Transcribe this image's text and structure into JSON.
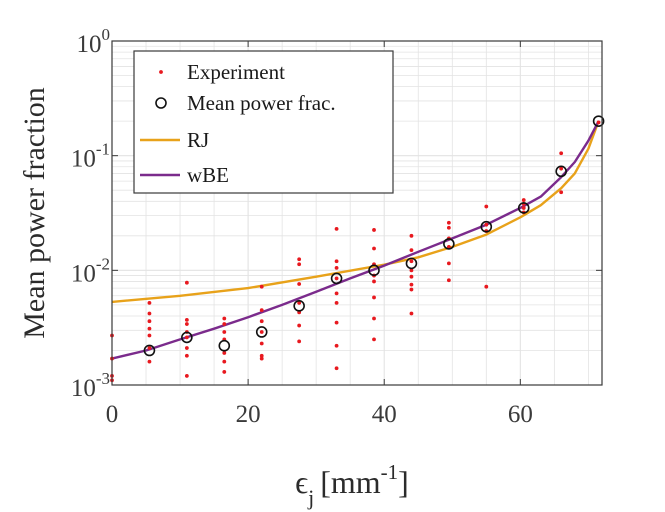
{
  "chart_data": {
    "type": "scatter",
    "title": "",
    "xlabel": {
      "base": "ϵ",
      "sub": "j",
      "unit": "[mm",
      "sup": "-1",
      "close": "]"
    },
    "ylabel": "Mean power fraction",
    "xscale": "linear",
    "yscale": "log",
    "xlim": [
      0,
      72
    ],
    "ylim": [
      0.001,
      1
    ],
    "xticks": [
      0,
      20,
      40,
      60
    ],
    "xtick_labels": [
      "0",
      "20",
      "40",
      "60"
    ],
    "yticks": [
      0.001,
      0.01,
      0.1,
      1
    ],
    "ytick_labels": [
      {
        "base": "10",
        "exp": "-3"
      },
      {
        "base": "10",
        "exp": "-2"
      },
      {
        "base": "10",
        "exp": "-1"
      },
      {
        "base": "10",
        "exp": "0"
      }
    ],
    "grid": true,
    "legend_position": "top-left",
    "colors": {
      "experiment": "#e8191f",
      "mean": "#111111",
      "rj": "#e8a21a",
      "wbe": "#7b2b8c",
      "axis": "#3a3a3a",
      "grid": "#e3e3e3"
    },
    "series": [
      {
        "name": "Experiment",
        "kind": "dots",
        "points": [
          [
            0,
            0.0017
          ],
          [
            0,
            0.0027
          ],
          [
            0,
            0.0011
          ],
          [
            0,
            0.0012
          ],
          [
            5.5,
            0.0052
          ],
          [
            5.5,
            0.0042
          ],
          [
            5.5,
            0.0036
          ],
          [
            5.5,
            0.0031
          ],
          [
            5.5,
            0.0027
          ],
          [
            5.5,
            0.0021
          ],
          [
            5.5,
            0.0016
          ],
          [
            11,
            0.0078
          ],
          [
            11,
            0.0037
          ],
          [
            11,
            0.0034
          ],
          [
            11,
            0.0029
          ],
          [
            11,
            0.0026
          ],
          [
            11,
            0.0021
          ],
          [
            11,
            0.0018
          ],
          [
            11,
            0.0012
          ],
          [
            16.5,
            0.0038
          ],
          [
            16.5,
            0.0034
          ],
          [
            16.5,
            0.0029
          ],
          [
            16.5,
            0.0025
          ],
          [
            16.5,
            0.0019
          ],
          [
            16.5,
            0.0016
          ],
          [
            16.5,
            0.0013
          ],
          [
            22,
            0.0072
          ],
          [
            22,
            0.0045
          ],
          [
            22,
            0.0036
          ],
          [
            22,
            0.0029
          ],
          [
            22,
            0.0023
          ],
          [
            22,
            0.0018
          ],
          [
            22,
            0.0017
          ],
          [
            27.5,
            0.0125
          ],
          [
            27.5,
            0.0113
          ],
          [
            27.5,
            0.0076
          ],
          [
            27.5,
            0.0052
          ],
          [
            27.5,
            0.0043
          ],
          [
            27.5,
            0.0033
          ],
          [
            27.5,
            0.0024
          ],
          [
            33,
            0.023
          ],
          [
            33,
            0.012
          ],
          [
            33,
            0.0105
          ],
          [
            33,
            0.0085
          ],
          [
            33,
            0.0063
          ],
          [
            33,
            0.0052
          ],
          [
            33,
            0.0035
          ],
          [
            33,
            0.0022
          ],
          [
            33,
            0.0014
          ],
          [
            38.5,
            0.0225
          ],
          [
            38.5,
            0.0155
          ],
          [
            38.5,
            0.0113
          ],
          [
            38.5,
            0.009
          ],
          [
            38.5,
            0.008
          ],
          [
            38.5,
            0.0058
          ],
          [
            38.5,
            0.0038
          ],
          [
            38.5,
            0.0025
          ],
          [
            44,
            0.02
          ],
          [
            44,
            0.015
          ],
          [
            44,
            0.012
          ],
          [
            44,
            0.01
          ],
          [
            44,
            0.0088
          ],
          [
            44,
            0.0075
          ],
          [
            44,
            0.0068
          ],
          [
            44,
            0.0042
          ],
          [
            49.5,
            0.026
          ],
          [
            49.5,
            0.0235
          ],
          [
            49.5,
            0.019
          ],
          [
            49.5,
            0.016
          ],
          [
            49.5,
            0.0115
          ],
          [
            49.5,
            0.0082
          ],
          [
            55,
            0.036
          ],
          [
            55,
            0.025
          ],
          [
            55,
            0.022
          ],
          [
            55,
            0.0072
          ],
          [
            60.5,
            0.041
          ],
          [
            60.5,
            0.038
          ],
          [
            60.5,
            0.035
          ],
          [
            60.5,
            0.032
          ],
          [
            66,
            0.105
          ],
          [
            66,
            0.077
          ],
          [
            66,
            0.048
          ],
          [
            71.5,
            0.195
          ]
        ]
      },
      {
        "name": "Mean power frac.",
        "kind": "circles",
        "points": [
          [
            5.5,
            0.002
          ],
          [
            11,
            0.0026
          ],
          [
            16.5,
            0.0022
          ],
          [
            22,
            0.0029
          ],
          [
            27.5,
            0.0049
          ],
          [
            33,
            0.0085
          ],
          [
            38.5,
            0.01
          ],
          [
            44,
            0.0115
          ],
          [
            49.5,
            0.017
          ],
          [
            55,
            0.024
          ],
          [
            60.5,
            0.035
          ],
          [
            66,
            0.073
          ],
          [
            71.5,
            0.2
          ]
        ]
      },
      {
        "name": "RJ",
        "kind": "line",
        "points": [
          [
            0,
            0.0053
          ],
          [
            10,
            0.006
          ],
          [
            20,
            0.007
          ],
          [
            30,
            0.0088
          ],
          [
            40,
            0.0112
          ],
          [
            45,
            0.013
          ],
          [
            50,
            0.016
          ],
          [
            55,
            0.0205
          ],
          [
            60,
            0.029
          ],
          [
            63,
            0.037
          ],
          [
            66,
            0.052
          ],
          [
            68,
            0.07
          ],
          [
            70,
            0.115
          ],
          [
            71.5,
            0.2
          ]
        ]
      },
      {
        "name": "wBE",
        "kind": "line",
        "points": [
          [
            0,
            0.0017
          ],
          [
            5,
            0.002
          ],
          [
            10,
            0.0025
          ],
          [
            15,
            0.0031
          ],
          [
            20,
            0.0039
          ],
          [
            25,
            0.005
          ],
          [
            30,
            0.0065
          ],
          [
            35,
            0.0085
          ],
          [
            40,
            0.011
          ],
          [
            45,
            0.0145
          ],
          [
            50,
            0.019
          ],
          [
            55,
            0.025
          ],
          [
            60,
            0.035
          ],
          [
            63,
            0.044
          ],
          [
            66,
            0.065
          ],
          [
            68,
            0.088
          ],
          [
            70,
            0.135
          ],
          [
            71.5,
            0.2
          ]
        ]
      }
    ]
  }
}
